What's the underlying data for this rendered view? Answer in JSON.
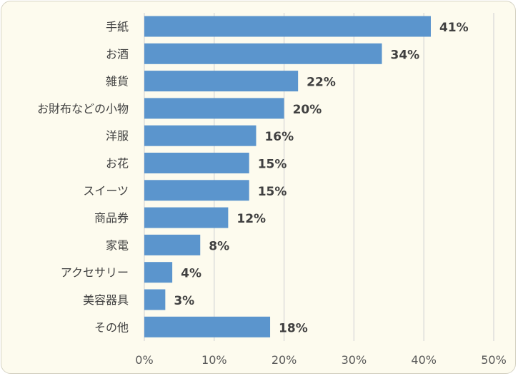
{
  "chart_data": {
    "type": "bar",
    "orientation": "horizontal",
    "categories": [
      "手紙",
      "お酒",
      "雑貨",
      "お財布などの小物",
      "洋服",
      "お花",
      "スイーツ",
      "商品券",
      "家電",
      "アクセサリー",
      "美容器具",
      "その他"
    ],
    "values": [
      41,
      34,
      22,
      20,
      16,
      15,
      15,
      12,
      8,
      4,
      3,
      18
    ],
    "data_labels": [
      "41%",
      "34%",
      "22%",
      "20%",
      "16%",
      "15%",
      "15%",
      "12%",
      "8%",
      "4%",
      "3%",
      "18%"
    ],
    "x_ticks": [
      "0%",
      "10%",
      "20%",
      "30%",
      "40%",
      "50%"
    ],
    "xlim": [
      0,
      50
    ],
    "x_tick_values": [
      0,
      10,
      20,
      30,
      40,
      50
    ],
    "title": "",
    "xlabel": "",
    "ylabel": "",
    "grid": "vertical",
    "legend": "none",
    "bar_color": "#5b95cd",
    "gridline_color": "#d9d9d9",
    "background_color": "#fdfbee"
  }
}
